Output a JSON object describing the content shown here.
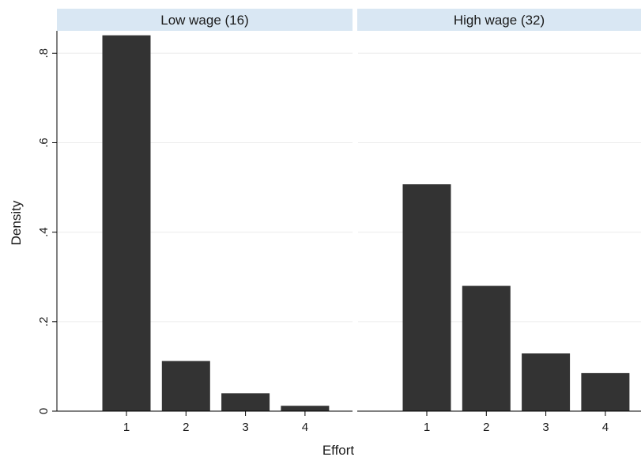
{
  "chart_data": {
    "type": "bar",
    "xlabel": "Effort",
    "ylabel": "Density",
    "ylim": [
      0,
      0.85
    ],
    "yticks": [
      0,
      0.2,
      0.4,
      0.6,
      0.8
    ],
    "ytick_labels": [
      "0",
      ".2",
      ".4",
      ".6",
      ".8"
    ],
    "categories": [
      "1",
      "2",
      "3",
      "4"
    ],
    "grid": true,
    "bar_color": "#333333",
    "strip_color": "#d9e7f3",
    "panels": [
      {
        "title": "Low wage (16)",
        "values": [
          0.84,
          0.112,
          0.04,
          0.012
        ]
      },
      {
        "title": "High wage (32)",
        "values": [
          0.507,
          0.28,
          0.129,
          0.085
        ]
      }
    ]
  }
}
